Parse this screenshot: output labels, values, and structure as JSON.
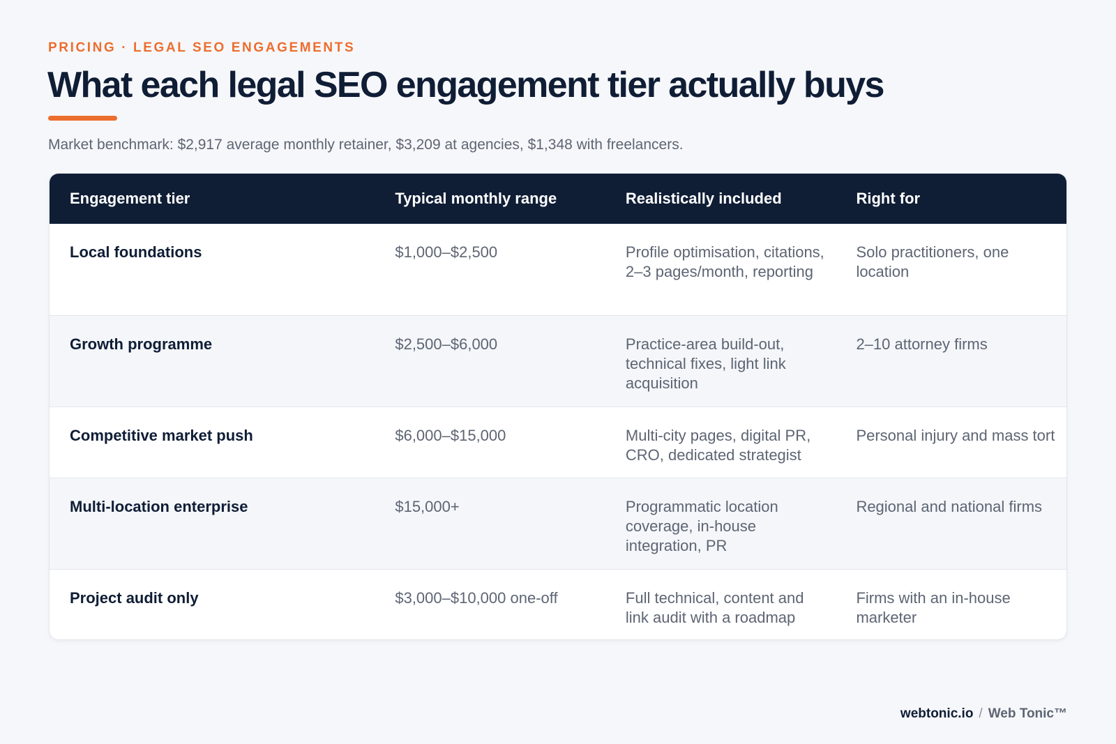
{
  "header": {
    "kicker": "PRICING · LEGAL SEO ENGAGEMENTS",
    "title": "What each legal SEO engagement tier actually buys",
    "subtitle": "Market benchmark: $2,917 average monthly retainer, $3,209 at agencies, $1,348 with freelancers."
  },
  "table": {
    "columns": [
      "Engagement tier",
      "Typical monthly range",
      "Realistically included",
      "Right for"
    ],
    "rows": [
      {
        "tier": "Local foundations",
        "range": "$1,000–$2,500",
        "included": "Profile optimisation, citations, 2–3 pages/month, reporting",
        "right_for": "Solo practitioners, one location"
      },
      {
        "tier": "Growth programme",
        "range": "$2,500–$6,000",
        "included": "Practice-area build-out, technical fixes, light link acquisition",
        "right_for": "2–10 attorney firms"
      },
      {
        "tier": "Competitive market push",
        "range": "$6,000–$15,000",
        "included": "Multi-city pages, digital PR, CRO, dedicated strategist",
        "right_for": "Personal injury and mass tort"
      },
      {
        "tier": "Multi-location enterprise",
        "range": "$15,000+",
        "included": "Programmatic location coverage, in-house integration, PR",
        "right_for": "Regional and national firms"
      },
      {
        "tier": "Project audit only",
        "range": "$3,000–$10,000 one-off",
        "included": "Full technical, content and link audit with a roadmap",
        "right_for": "Firms with an in-house marketer"
      }
    ]
  },
  "footer": {
    "site": "webtonic.io",
    "separator": "/",
    "brand": "Web Tonic™"
  },
  "colors": {
    "accent": "#ec6e2e",
    "navy": "#0f1d35",
    "muted_text": "#5d6573"
  }
}
